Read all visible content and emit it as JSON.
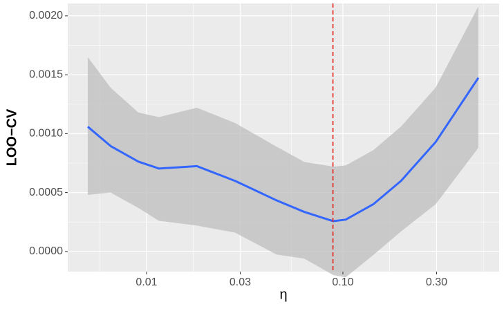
{
  "chart_data": {
    "type": "smooth",
    "x_label": "η",
    "y_label": "LOO−CV",
    "log_x": true,
    "grid": true,
    "x": [
      0.00502,
      0.00656,
      0.00908,
      0.01156,
      0.01806,
      0.02825,
      0.0459,
      0.0635,
      0.0893,
      0.1033,
      0.1429,
      0.1977,
      0.2965,
      0.4898
    ],
    "values": [
      0.001059,
      0.000895,
      0.000763,
      0.000704,
      0.000724,
      0.000599,
      0.000434,
      0.000336,
      0.000257,
      0.00027,
      0.000401,
      0.000599,
      0.000928,
      0.001474
    ],
    "upper": [
      0.00165,
      0.00139,
      0.00118,
      0.00114,
      0.00122,
      0.00109,
      0.00089,
      0.00076,
      0.00072,
      0.00073,
      0.00086,
      0.00106,
      0.00139,
      0.00208
    ],
    "lower": [
      0.00048,
      0.0005,
      0.00037,
      0.00026,
      0.00022,
      0.00016,
      -2.6e-05,
      -6e-05,
      -0.0002,
      -0.00022,
      -3e-05,
      0.00017,
      0.0004,
      0.00088
    ],
    "color": "#3366ff",
    "band_color": "#bdbdbd",
    "vline": 0.089,
    "vline_color": "#e41a1c",
    "xlim": [
      0.00397,
      0.625
    ],
    "ylim": [
      -0.000171,
      0.002105
    ],
    "xticks": [
      0.01,
      0.03,
      {
        "value": 0.1,
        "label": "0.10"
      },
      {
        "value": 0.3,
        "label": "0.30"
      }
    ],
    "yticks": [
      {
        "value": 0,
        "label": "0.0000"
      },
      {
        "value": 0.0005,
        "label": "0.0005"
      },
      {
        "value": 0.001,
        "label": "0.0010"
      },
      {
        "value": 0.0015,
        "label": "0.0015"
      },
      {
        "value": 0.002,
        "label": "0.0020"
      }
    ]
  }
}
